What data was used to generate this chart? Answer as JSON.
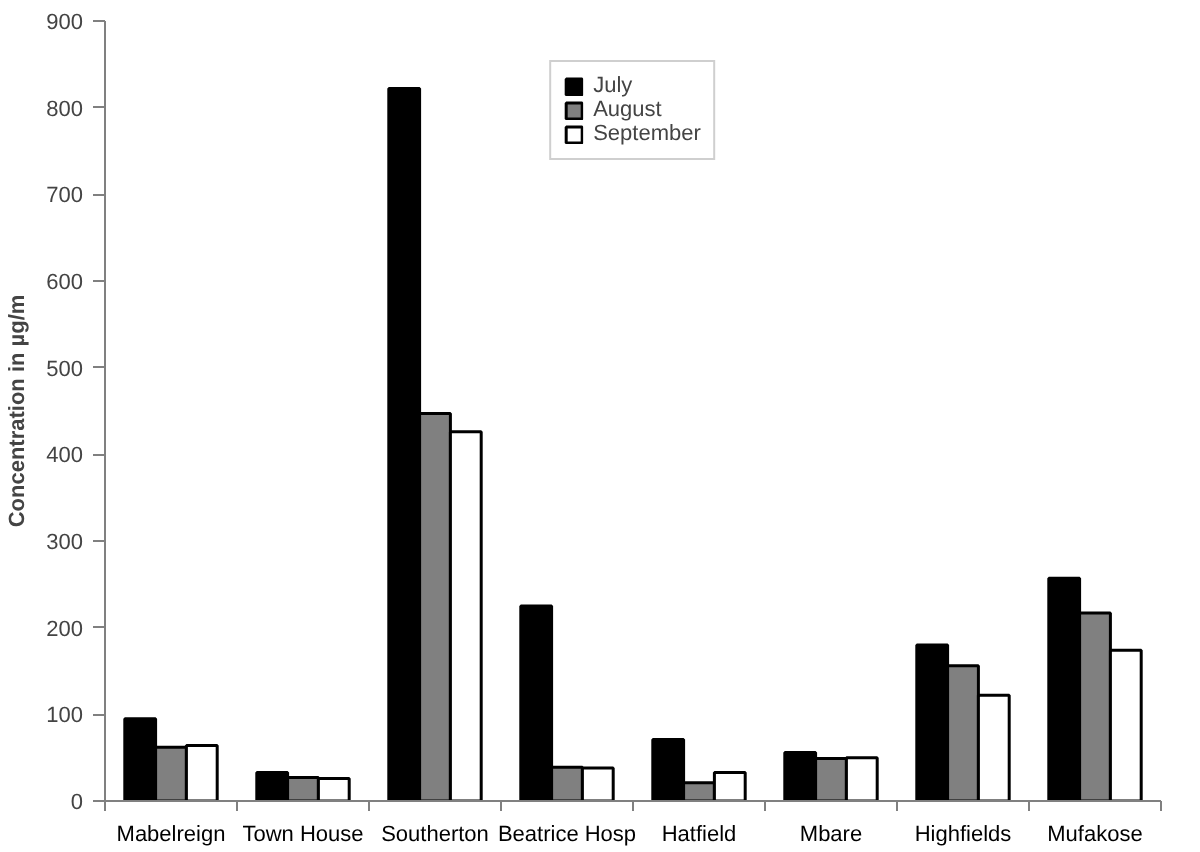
{
  "chart_data": {
    "type": "bar",
    "ylabel": "Concentration in µg/m",
    "categories": [
      "Mabelreign",
      "Town House",
      "Southerton",
      "Beatrice Hosp",
      "Hatfield",
      "Mbare",
      "Highfields",
      "Mufakose"
    ],
    "series": [
      {
        "name": "July",
        "color": "#000000",
        "values": [
          95,
          33,
          822,
          225,
          71,
          56,
          180,
          257
        ]
      },
      {
        "name": "August",
        "color": "#808080",
        "values": [
          62,
          27,
          447,
          39,
          21,
          49,
          156,
          217
        ]
      },
      {
        "name": "September",
        "color": "#ffffff",
        "values": [
          64,
          26,
          426,
          38,
          33,
          50,
          122,
          174
        ]
      }
    ],
    "ylim": [
      0,
      900
    ],
    "yticks": [
      0,
      100,
      200,
      300,
      400,
      500,
      600,
      700,
      800,
      900
    ],
    "grid": false,
    "legend": "top"
  }
}
